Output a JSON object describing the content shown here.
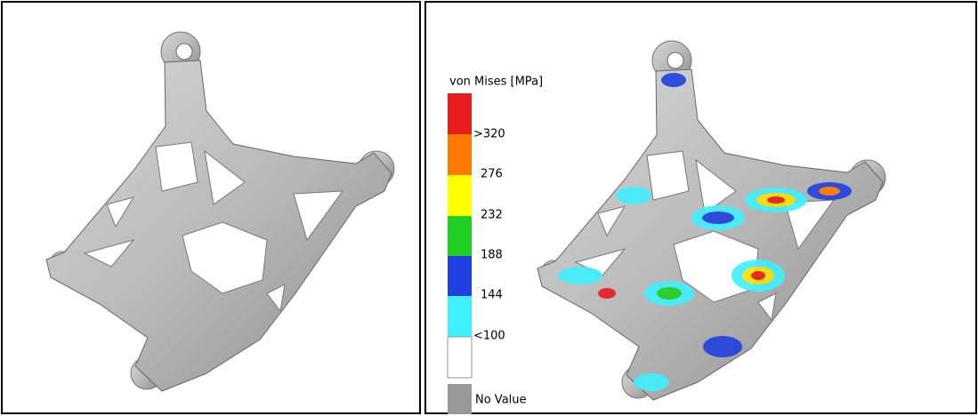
{
  "legend": {
    "title": "von Mises [MPa]",
    "labels": [
      ">320",
      "276",
      "232",
      "188",
      "144",
      "<100"
    ],
    "no_value": "No Value"
  }
}
